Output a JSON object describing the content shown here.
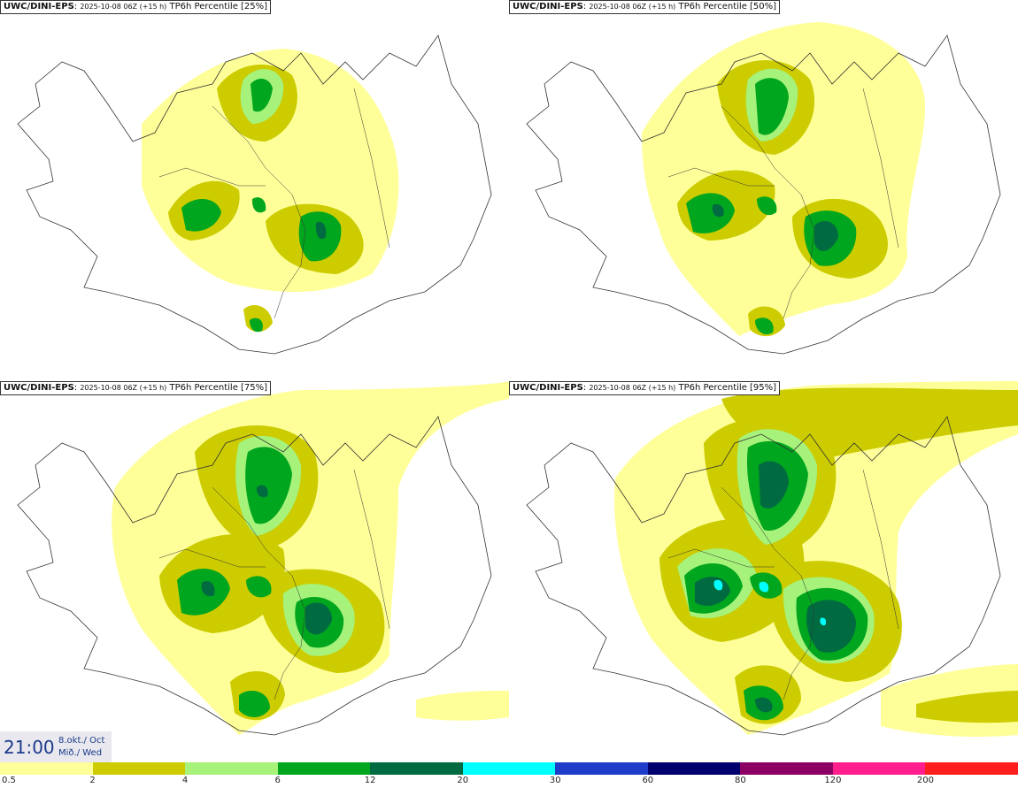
{
  "panels": [
    {
      "model": "UWC/DINI-EPS",
      "run": "2025-10-08 06Z (+15 h)",
      "product": "TP6h Percentile [25%]"
    },
    {
      "model": "UWC/DINI-EPS",
      "run": "2025-10-08 06Z (+15 h)",
      "product": "TP6h Percentile [50%]"
    },
    {
      "model": "UWC/DINI-EPS",
      "run": "2025-10-08 06Z (+15 h)",
      "product": "TP6h Percentile [75%]"
    },
    {
      "model": "UWC/DINI-EPS",
      "run": "2025-10-08 06Z (+15 h)",
      "product": "TP6h Percentile [95%]"
    }
  ],
  "valid_time": {
    "time": "21:00",
    "date_is": "8.okt./ Oct",
    "day_is": "Mið./ Wed"
  },
  "legend": {
    "colors": [
      "#ffff99",
      "#cccc00",
      "#a6f27a",
      "#00a61e",
      "#006b40",
      "#00ffff",
      "#1e3cc8",
      "#00006e",
      "#8c0064",
      "#ff1e8c",
      "#ff1e1e"
    ],
    "labels": [
      "0.5",
      "2",
      "4",
      "6",
      "12",
      "20",
      "30",
      "60",
      "80",
      "120",
      "200"
    ]
  }
}
